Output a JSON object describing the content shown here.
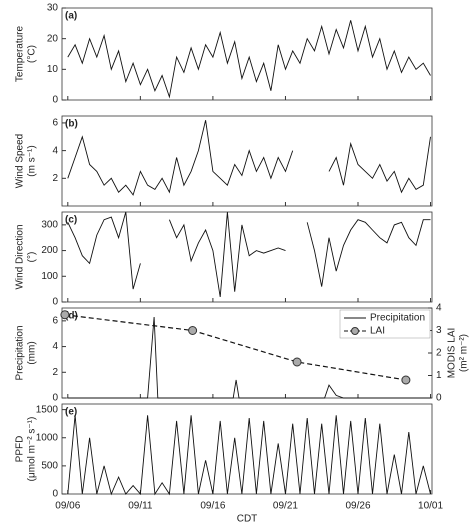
{
  "chart_data": [
    {
      "type": "line",
      "label": "(a)",
      "ylabel": [
        "Temperature",
        "(°C)"
      ],
      "x": [
        6,
        6.5,
        7,
        7.5,
        8,
        8.5,
        9,
        9.5,
        10,
        10.5,
        11,
        11.5,
        12,
        12.5,
        13,
        13.5,
        14,
        14.5,
        15,
        15.5,
        16,
        16.5,
        17,
        17.5,
        18,
        18.5,
        19,
        19.5,
        20,
        20.5,
        21,
        21.5,
        22,
        22.5,
        23,
        23.5,
        24,
        24.5,
        25,
        25.5,
        26,
        26.5,
        27,
        27.5,
        28,
        28.5,
        29,
        29.5,
        30,
        30.5,
        31
      ],
      "xlim": [
        5.6,
        31.1
      ],
      "xticks": [
        6,
        11,
        16,
        21,
        26,
        31
      ],
      "ylim": [
        0,
        30
      ],
      "yticks": [
        0,
        10,
        20,
        30
      ],
      "series": [
        {
          "color": "#111111",
          "values": [
            14,
            18,
            12,
            20,
            14,
            21,
            10,
            16,
            6,
            12,
            5,
            10,
            3,
            8,
            1,
            14,
            9,
            17,
            10,
            18,
            14,
            22,
            12,
            19,
            7,
            14,
            6,
            12,
            3,
            18,
            10,
            16,
            12,
            20,
            16,
            24,
            15,
            23,
            17,
            26,
            16,
            24,
            14,
            20,
            10,
            16,
            9,
            14,
            10,
            12,
            8
          ]
        }
      ]
    },
    {
      "type": "line",
      "label": "(b)",
      "ylabel": [
        "Wind Speed",
        "(m s⁻¹)"
      ],
      "x": [
        6,
        6.5,
        7,
        7.5,
        8,
        8.5,
        9,
        9.5,
        10,
        10.5,
        11,
        11.5,
        12,
        12.5,
        13,
        13.5,
        14,
        14.5,
        15,
        15.5,
        16,
        16.5,
        17,
        17.5,
        18,
        18.5,
        19,
        19.5,
        20,
        20.5,
        21,
        21.5,
        22,
        22.5,
        23,
        23.5,
        24,
        24.5,
        25,
        25.5,
        26,
        26.5,
        27,
        27.5,
        28,
        28.5,
        29,
        29.5,
        30,
        30.5,
        31
      ],
      "xlim": [
        5.6,
        31.1
      ],
      "xticks": [
        6,
        11,
        16,
        21,
        26,
        31
      ],
      "ylim": [
        0,
        6.5
      ],
      "yticks": [
        2,
        4,
        6
      ],
      "series": [
        {
          "color": "#111111",
          "values": [
            2,
            3.5,
            5,
            3,
            2.5,
            1.5,
            2,
            1,
            1.5,
            0.8,
            2.5,
            1.5,
            1.2,
            2,
            1,
            3.5,
            1.5,
            2.5,
            4,
            6.2,
            2.5,
            2,
            1.5,
            3,
            2.2,
            4,
            2.5,
            3.5,
            2,
            3.5,
            2.5,
            4,
            null,
            null,
            null,
            null,
            2.5,
            3.5,
            1.5,
            4.5,
            3,
            2.5,
            2,
            3,
            1.8,
            2.5,
            1,
            2,
            1.2,
            1.5,
            5
          ]
        }
      ]
    },
    {
      "type": "line",
      "label": "(c)",
      "ylabel": [
        "Wind Direction",
        "(°)"
      ],
      "x": [
        6,
        6.5,
        7,
        7.5,
        8,
        8.5,
        9,
        9.5,
        10,
        10.5,
        11,
        11.5,
        12,
        12.5,
        13,
        13.5,
        14,
        14.5,
        15,
        15.5,
        16,
        16.5,
        17,
        17.5,
        18,
        18.5,
        19,
        19.5,
        20,
        20.5,
        21,
        21.5,
        22,
        22.5,
        23,
        23.5,
        24,
        24.5,
        25,
        25.5,
        26,
        26.5,
        27,
        27.5,
        28,
        28.5,
        29,
        29.5,
        30,
        30.5,
        31
      ],
      "xlim": [
        5.6,
        31.1
      ],
      "xticks": [
        6,
        11,
        16,
        21,
        26,
        31
      ],
      "ylim": [
        0,
        350
      ],
      "yticks": [
        0,
        100,
        200,
        300
      ],
      "series": [
        {
          "color": "#111111",
          "values": [
            310,
            250,
            180,
            150,
            260,
            320,
            330,
            250,
            350,
            50,
            150,
            null,
            null,
            null,
            320,
            250,
            300,
            160,
            230,
            280,
            200,
            20,
            350,
            40,
            300,
            180,
            200,
            190,
            200,
            210,
            200,
            null,
            null,
            310,
            200,
            60,
            250,
            120,
            220,
            280,
            320,
            310,
            280,
            250,
            230,
            300,
            310,
            250,
            220,
            320,
            320
          ]
        }
      ]
    },
    {
      "type": "line",
      "label": "(d)",
      "ylabel": [
        "Precipitation",
        "(mm)"
      ],
      "y2label": [
        "MODIS LAI",
        "(m² m⁻²)"
      ],
      "xlim": [
        5.6,
        31.1
      ],
      "xticks": [
        6,
        11,
        16,
        21,
        26,
        31
      ],
      "ylim": [
        0,
        7
      ],
      "yticks": [
        0,
        2,
        4,
        6
      ],
      "y2lim": [
        0,
        4
      ],
      "y2ticks": [
        0,
        1,
        2,
        3,
        4
      ],
      "legend": "upper right",
      "series": [
        {
          "name": "Precipitation",
          "color": "#111111",
          "x": [
            6,
            11.5,
            11.95,
            12.2,
            12.5,
            17.4,
            17.6,
            17.8,
            23.7,
            24,
            24.5,
            25,
            31
          ],
          "values": [
            0,
            0,
            6.3,
            0,
            0,
            0,
            1.4,
            0,
            0,
            1,
            0.2,
            0,
            0
          ]
        },
        {
          "name": "LAI",
          "color": "#111111",
          "style": "dashed",
          "marker": "circle",
          "marker_color": "#aaaaaa",
          "axis": "y2",
          "x": [
            5.8,
            14.6,
            21.8,
            29.3
          ],
          "values": [
            3.7,
            3.0,
            1.6,
            0.8
          ]
        }
      ]
    },
    {
      "type": "line",
      "label": "(e)",
      "ylabel": [
        "PPFD",
        "(μmol m⁻² s⁻¹)"
      ],
      "xlabel": "CDT",
      "x": [
        6,
        6.5,
        7,
        7.5,
        8,
        8.5,
        9,
        9.5,
        10,
        10.5,
        11,
        11.5,
        12,
        12.5,
        13,
        13.5,
        14,
        14.5,
        15,
        15.5,
        16,
        16.5,
        17,
        17.5,
        18,
        18.5,
        19,
        19.5,
        20,
        20.5,
        21,
        21.5,
        22,
        22.5,
        23,
        23.5,
        24,
        24.5,
        25,
        25.5,
        26,
        26.5,
        27,
        27.5,
        28,
        28.5,
        29,
        29.5,
        30,
        30.5,
        31
      ],
      "xlim": [
        5.6,
        31.1
      ],
      "xticks": [
        {
          "value": 6,
          "label": "09/06"
        },
        {
          "value": 11,
          "label": "09/11"
        },
        {
          "value": 16,
          "label": "09/16"
        },
        {
          "value": 21,
          "label": "09/21"
        },
        {
          "value": 26,
          "label": "09/26"
        },
        {
          "value": 31,
          "label": "10/01"
        }
      ],
      "ylim": [
        0,
        1600
      ],
      "yticks": [
        0,
        500,
        1000,
        1500
      ],
      "series": [
        {
          "color": "#111111",
          "values": [
            0,
            1400,
            0,
            1000,
            0,
            500,
            0,
            300,
            0,
            150,
            0,
            1400,
            0,
            200,
            0,
            1300,
            0,
            1400,
            0,
            600,
            0,
            1300,
            0,
            1000,
            0,
            1350,
            0,
            1300,
            0,
            900,
            0,
            1250,
            0,
            1350,
            0,
            1250,
            0,
            1400,
            0,
            1300,
            0,
            1350,
            0,
            1250,
            0,
            700,
            0,
            1100,
            0,
            500,
            0
          ]
        }
      ]
    }
  ]
}
